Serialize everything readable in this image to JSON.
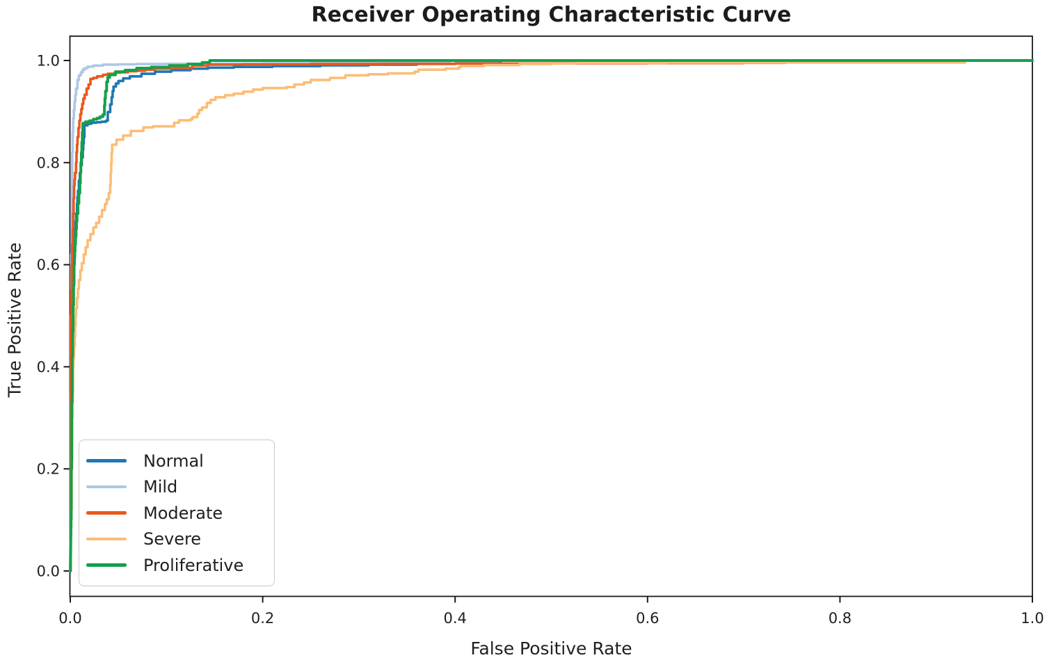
{
  "chart_data": {
    "type": "line",
    "subtype": "roc-step-curves",
    "title": "Receiver Operating Characteristic Curve",
    "xlabel": "False Positive Rate",
    "ylabel": "True Positive Rate",
    "xlim": [
      0,
      1
    ],
    "ylim": [
      0,
      1
    ],
    "grid": false,
    "legend_position": "lower-left",
    "x_ticks": [
      0,
      0.2,
      0.4,
      0.6,
      0.8,
      1.0
    ],
    "y_ticks": [
      0,
      0.2,
      0.4,
      0.6,
      0.8,
      1.0
    ],
    "x_tick_labels": [
      "0.0",
      "0.2",
      "0.4",
      "0.6",
      "0.8",
      "1.0"
    ],
    "y_tick_labels": [
      "0.0",
      "0.2",
      "0.4",
      "0.6",
      "0.8",
      "1.0"
    ],
    "axis_color": "#1a1a1a",
    "series": [
      {
        "name": "Normal",
        "color": "#1f77b4",
        "points": [
          [
            0,
            0
          ],
          [
            0.001,
            0.25
          ],
          [
            0.0015,
            0.4
          ],
          [
            0.002,
            0.52
          ],
          [
            0.003,
            0.6
          ],
          [
            0.004,
            0.64
          ],
          [
            0.005,
            0.67
          ],
          [
            0.006,
            0.7
          ],
          [
            0.007,
            0.72
          ],
          [
            0.008,
            0.745
          ],
          [
            0.009,
            0.765
          ],
          [
            0.01,
            0.78
          ],
          [
            0.011,
            0.795
          ],
          [
            0.012,
            0.81
          ],
          [
            0.013,
            0.825
          ],
          [
            0.014,
            0.85
          ],
          [
            0.0147,
            0.873
          ],
          [
            0.018,
            0.876
          ],
          [
            0.022,
            0.878
          ],
          [
            0.027,
            0.879
          ],
          [
            0.032,
            0.88
          ],
          [
            0.037,
            0.882
          ],
          [
            0.039,
            0.899
          ],
          [
            0.0415,
            0.914
          ],
          [
            0.043,
            0.928
          ],
          [
            0.044,
            0.94
          ],
          [
            0.045,
            0.949
          ],
          [
            0.0475,
            0.955
          ],
          [
            0.05,
            0.96
          ],
          [
            0.055,
            0.965
          ],
          [
            0.062,
            0.969
          ],
          [
            0.074,
            0.974
          ],
          [
            0.088,
            0.978
          ],
          [
            0.105,
            0.981
          ],
          [
            0.125,
            0.984
          ],
          [
            0.143,
            0.986
          ],
          [
            0.17,
            0.9875
          ],
          [
            0.21,
            0.989
          ],
          [
            0.26,
            0.9905
          ],
          [
            0.31,
            0.992
          ],
          [
            0.36,
            0.9935
          ],
          [
            0.4,
            0.9945
          ],
          [
            0.447,
            0.9945
          ],
          [
            0.447,
            1
          ],
          [
            1,
            1
          ]
        ]
      },
      {
        "name": "Mild",
        "color": "#aec7e8",
        "points": [
          [
            0,
            0
          ],
          [
            0.0005,
            0.35
          ],
          [
            0.001,
            0.62
          ],
          [
            0.0015,
            0.75
          ],
          [
            0.002,
            0.82
          ],
          [
            0.0025,
            0.86
          ],
          [
            0.003,
            0.887
          ],
          [
            0.0045,
            0.92
          ],
          [
            0.006,
            0.945
          ],
          [
            0.0075,
            0.962
          ],
          [
            0.009,
            0.971
          ],
          [
            0.011,
            0.977
          ],
          [
            0.013,
            0.982
          ],
          [
            0.015,
            0.985
          ],
          [
            0.018,
            0.988
          ],
          [
            0.024,
            0.99
          ],
          [
            0.034,
            0.992
          ],
          [
            0.05,
            0.9925
          ],
          [
            0.069,
            0.993
          ],
          [
            0.1,
            0.9935
          ],
          [
            0.15,
            0.994
          ],
          [
            0.2,
            0.9945
          ],
          [
            0.25,
            0.995
          ],
          [
            0.3,
            0.9955
          ],
          [
            0.35,
            0.996
          ],
          [
            0.395,
            0.996
          ],
          [
            0.395,
            1
          ],
          [
            1,
            1
          ]
        ]
      },
      {
        "name": "Moderate",
        "color": "#e8591d",
        "points": [
          [
            0,
            0
          ],
          [
            0.0004,
            0.3
          ],
          [
            0.0006,
            0.5
          ],
          [
            0.001,
            0.55
          ],
          [
            0.0015,
            0.6
          ],
          [
            0.002,
            0.64
          ],
          [
            0.0025,
            0.67
          ],
          [
            0.003,
            0.7
          ],
          [
            0.0035,
            0.73
          ],
          [
            0.004,
            0.755
          ],
          [
            0.005,
            0.78
          ],
          [
            0.006,
            0.8
          ],
          [
            0.0065,
            0.82
          ],
          [
            0.0075,
            0.85
          ],
          [
            0.0085,
            0.868
          ],
          [
            0.0095,
            0.882
          ],
          [
            0.0105,
            0.895
          ],
          [
            0.0115,
            0.905
          ],
          [
            0.0125,
            0.915
          ],
          [
            0.0135,
            0.925
          ],
          [
            0.015,
            0.933
          ],
          [
            0.017,
            0.945
          ],
          [
            0.019,
            0.953
          ],
          [
            0.021,
            0.964
          ],
          [
            0.024,
            0.966
          ],
          [
            0.028,
            0.969
          ],
          [
            0.034,
            0.972
          ],
          [
            0.039,
            0.974
          ],
          [
            0.046,
            0.976
          ],
          [
            0.052,
            0.977
          ],
          [
            0.06,
            0.979
          ],
          [
            0.069,
            0.98
          ],
          [
            0.078,
            0.982
          ],
          [
            0.088,
            0.984
          ],
          [
            0.105,
            0.986
          ],
          [
            0.127,
            0.99
          ],
          [
            0.143,
            0.992
          ],
          [
            0.18,
            0.9925
          ],
          [
            0.25,
            0.993
          ],
          [
            0.32,
            0.9935
          ],
          [
            0.4,
            0.994
          ],
          [
            0.5,
            0.9945
          ],
          [
            0.6,
            0.995
          ],
          [
            0.7,
            0.9955
          ],
          [
            0.743,
            0.9955
          ],
          [
            0.743,
            1
          ],
          [
            1,
            1
          ]
        ]
      },
      {
        "name": "Severe",
        "color": "#fbbd78",
        "points": [
          [
            0,
            0
          ],
          [
            0.001,
            0.12
          ],
          [
            0.0015,
            0.22
          ],
          [
            0.002,
            0.3
          ],
          [
            0.0025,
            0.35
          ],
          [
            0.003,
            0.4
          ],
          [
            0.004,
            0.44
          ],
          [
            0.0046,
            0.457
          ],
          [
            0.005,
            0.48
          ],
          [
            0.0055,
            0.5
          ],
          [
            0.006,
            0.515
          ],
          [
            0.007,
            0.535
          ],
          [
            0.008,
            0.553
          ],
          [
            0.009,
            0.57
          ],
          [
            0.0105,
            0.589
          ],
          [
            0.012,
            0.603
          ],
          [
            0.014,
            0.62
          ],
          [
            0.016,
            0.634
          ],
          [
            0.018,
            0.648
          ],
          [
            0.021,
            0.66
          ],
          [
            0.024,
            0.673
          ],
          [
            0.027,
            0.682
          ],
          [
            0.03,
            0.694
          ],
          [
            0.033,
            0.707
          ],
          [
            0.036,
            0.719
          ],
          [
            0.038,
            0.728
          ],
          [
            0.04,
            0.74
          ],
          [
            0.0415,
            0.757
          ],
          [
            0.042,
            0.78
          ],
          [
            0.0425,
            0.8
          ],
          [
            0.043,
            0.82
          ],
          [
            0.0435,
            0.835
          ],
          [
            0.048,
            0.845
          ],
          [
            0.055,
            0.853
          ],
          [
            0.063,
            0.862
          ],
          [
            0.076,
            0.869
          ],
          [
            0.086,
            0.871
          ],
          [
            0.105,
            0.871
          ],
          [
            0.108,
            0.878
          ],
          [
            0.113,
            0.883
          ],
          [
            0.125,
            0.885
          ],
          [
            0.127,
            0.889
          ],
          [
            0.132,
            0.896
          ],
          [
            0.134,
            0.903
          ],
          [
            0.137,
            0.908
          ],
          [
            0.142,
            0.917
          ],
          [
            0.146,
            0.923
          ],
          [
            0.151,
            0.928
          ],
          [
            0.161,
            0.932
          ],
          [
            0.17,
            0.935
          ],
          [
            0.18,
            0.939
          ],
          [
            0.19,
            0.943
          ],
          [
            0.2,
            0.946
          ],
          [
            0.225,
            0.948
          ],
          [
            0.233,
            0.953
          ],
          [
            0.243,
            0.957
          ],
          [
            0.25,
            0.962
          ],
          [
            0.27,
            0.966
          ],
          [
            0.286,
            0.971
          ],
          [
            0.31,
            0.973
          ],
          [
            0.33,
            0.975
          ],
          [
            0.358,
            0.978
          ],
          [
            0.362,
            0.982
          ],
          [
            0.39,
            0.984
          ],
          [
            0.404,
            0.987
          ],
          [
            0.406,
            0.989
          ],
          [
            0.43,
            0.991
          ],
          [
            0.467,
            0.993
          ],
          [
            0.5,
            0.994
          ],
          [
            0.525,
            0.9955
          ],
          [
            0.62,
            0.996
          ],
          [
            0.74,
            0.996
          ],
          [
            0.93,
            0.996
          ],
          [
            0.93,
            1
          ],
          [
            1,
            1
          ]
        ]
      },
      {
        "name": "Proliferative",
        "color": "#14a04b",
        "points": [
          [
            0,
            0
          ],
          [
            0.0008,
            0.1
          ],
          [
            0.001,
            0.2
          ],
          [
            0.0015,
            0.33
          ],
          [
            0.002,
            0.42
          ],
          [
            0.0025,
            0.47
          ],
          [
            0.003,
            0.52
          ],
          [
            0.0035,
            0.56
          ],
          [
            0.004,
            0.6
          ],
          [
            0.005,
            0.64
          ],
          [
            0.006,
            0.67
          ],
          [
            0.007,
            0.7
          ],
          [
            0.008,
            0.72
          ],
          [
            0.009,
            0.74
          ],
          [
            0.01,
            0.76
          ],
          [
            0.0105,
            0.78
          ],
          [
            0.011,
            0.8
          ],
          [
            0.0115,
            0.82
          ],
          [
            0.012,
            0.84
          ],
          [
            0.0125,
            0.86
          ],
          [
            0.013,
            0.877
          ],
          [
            0.016,
            0.88
          ],
          [
            0.02,
            0.882
          ],
          [
            0.024,
            0.885
          ],
          [
            0.028,
            0.887
          ],
          [
            0.031,
            0.89
          ],
          [
            0.034,
            0.894
          ],
          [
            0.0355,
            0.912
          ],
          [
            0.036,
            0.926
          ],
          [
            0.0366,
            0.94
          ],
          [
            0.0378,
            0.958
          ],
          [
            0.039,
            0.967
          ],
          [
            0.041,
            0.972
          ],
          [
            0.047,
            0.978
          ],
          [
            0.057,
            0.981
          ],
          [
            0.069,
            0.985
          ],
          [
            0.084,
            0.987
          ],
          [
            0.103,
            0.99
          ],
          [
            0.122,
            0.993
          ],
          [
            0.137,
            0.996
          ],
          [
            0.145,
            0.997
          ],
          [
            0.145,
            1
          ],
          [
            1,
            1
          ]
        ]
      }
    ]
  }
}
